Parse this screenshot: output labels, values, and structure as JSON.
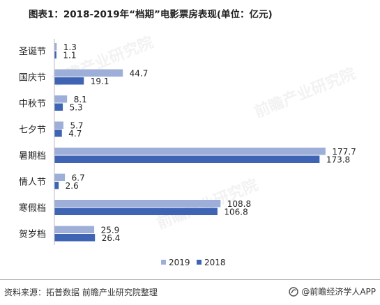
{
  "chart_data": {
    "type": "bar",
    "orientation": "horizontal",
    "title": "图表1：2018-2019年“档期”电影票房表现(单位：亿元)",
    "categories": [
      "圣诞节",
      "国庆节",
      "中秋节",
      "七夕节",
      "暑期档",
      "情人节",
      "寒假档",
      "贺岁档"
    ],
    "series": [
      {
        "name": "2019",
        "color": "#9dafd9",
        "values": [
          1.3,
          44.7,
          8.1,
          5.7,
          177.7,
          6.7,
          108.8,
          25.9
        ]
      },
      {
        "name": "2018",
        "color": "#3f64b3",
        "values": [
          1.1,
          19.1,
          5.3,
          4.7,
          173.8,
          2.6,
          106.8,
          26.4
        ]
      }
    ],
    "xlim": [
      0,
      180
    ],
    "grid": false,
    "legend_position": "bottom"
  },
  "footer": {
    "source": "资料来源：拓普数据 前瞻产业研究院整理",
    "brand": "@前瞻经济学人APP"
  },
  "watermark": "前瞻产业研究院"
}
